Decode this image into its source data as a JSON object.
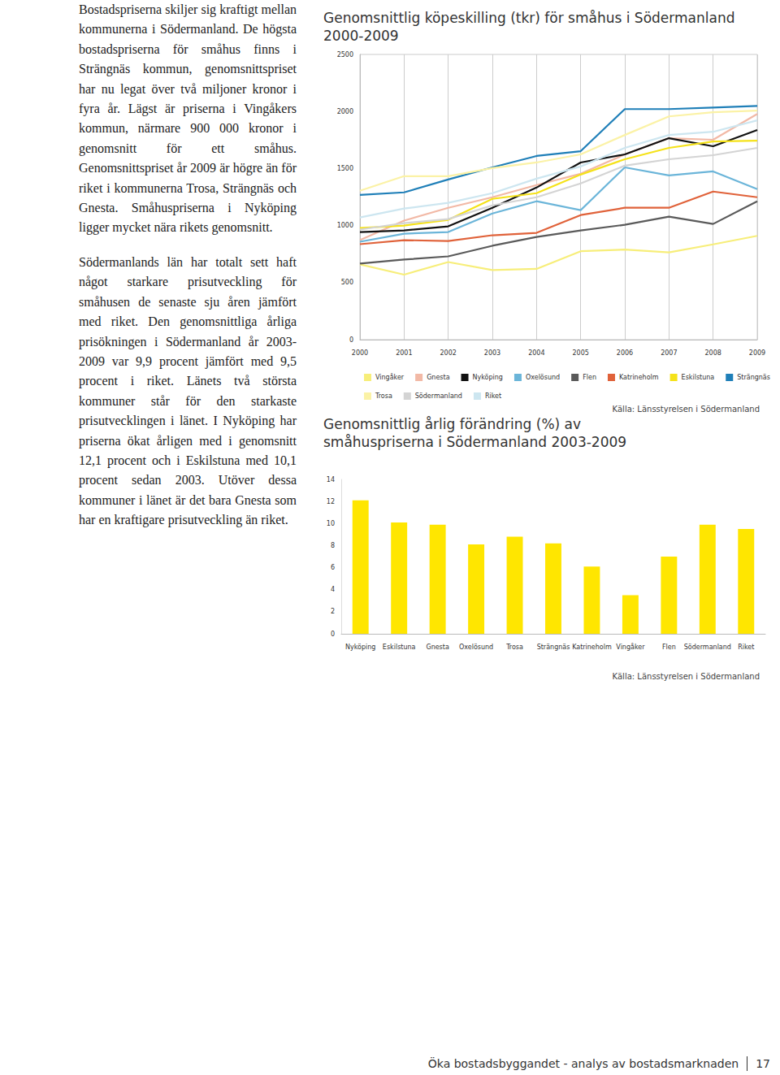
{
  "text": {
    "paragraphs": [
      "Bostadspriserna skiljer sig kraftigt mellan kommunerna i Södermanland. De högsta bostadspriserna för småhus finns i Strängnäs kommun, genomsnittspriset har nu legat över två miljoner kronor i fyra år. Lägst är priserna i Vingåkers kommun, närmare 900 000 kronor i genomsnitt för ett småhus. Genomsnittspriset år 2009 är högre än för riket i kommunerna Trosa, Strängnäs och Gnesta. Småhuspriserna i Nyköping ligger mycket nära rikets genomsnitt.",
      "Södermanlands län har totalt sett haft något starkare prisutveckling för småhusen de senaste sju åren jämfört med riket. Den genomsnittliga årliga prisökningen i Södermanland år 2003-2009 var 9,9 procent jämfört med 9,5 procent i riket. Länets två största kommuner står för den starkaste prisutvecklingen i länet. I Nyköping har priserna ökat årligen med i genomsnitt 12,1 procent och i Eskilstuna med 10,1 procent sedan 2003. Utöver dessa kommuner i länet är det bara Gnesta som har en kraftigare prisutveckling än riket."
    ]
  },
  "chart_data": [
    {
      "type": "line",
      "title": "Genomsnittlig köpeskilling (tkr) för småhus i Södermanland 2000-2009",
      "source": "Källa: Länsstyrelsen i Södermanland",
      "categories": [
        "2000",
        "2001",
        "2002",
        "2003",
        "2004",
        "2005",
        "2006",
        "2007",
        "2008",
        "2009"
      ],
      "series": [
        {
          "name": "Vingåker",
          "color": "#f7ee7a",
          "values": [
            660,
            570,
            680,
            610,
            620,
            775,
            790,
            765,
            835,
            910
          ]
        },
        {
          "name": "Gnesta",
          "color": "#f2b9a6",
          "values": [
            872,
            1043,
            1156,
            1248,
            1355,
            1454,
            1624,
            1766,
            1752,
            1978
          ]
        },
        {
          "name": "Nyköping",
          "color": "#111111",
          "values": [
            943,
            957,
            993,
            1156,
            1333,
            1553,
            1624,
            1766,
            1695,
            1837
          ]
        },
        {
          "name": "Oxelösund",
          "color": "#6bb5d9",
          "values": [
            858,
            929,
            943,
            1106,
            1213,
            1135,
            1510,
            1440,
            1475,
            1319
          ]
        },
        {
          "name": "Flen",
          "color": "#5a5a5a",
          "values": [
            667,
            702,
            730,
            823,
            900,
            957,
            1007,
            1078,
            1014,
            1213
          ]
        },
        {
          "name": "Katrineholm",
          "color": "#e0623a",
          "values": [
            837,
            872,
            865,
            915,
            936,
            1092,
            1156,
            1156,
            1298,
            1248
          ]
        },
        {
          "name": "Eskilstuna",
          "color": "#f5e21a",
          "values": [
            979,
            1000,
            1050,
            1234,
            1284,
            1447,
            1581,
            1681,
            1737,
            1744
          ]
        },
        {
          "name": "Strängnäs",
          "color": "#1f7fb8",
          "values": [
            1269,
            1291,
            1404,
            1510,
            1610,
            1652,
            2021,
            2021,
            2035,
            2049
          ]
        },
        {
          "name": "Trosa",
          "color": "#fbf2a6",
          "values": [
            1305,
            1433,
            1433,
            1504,
            1553,
            1624,
            1794,
            1957,
            1993,
            2007
          ]
        },
        {
          "name": "Södermanland",
          "color": "#d4d4d4",
          "values": [
            965,
            1021,
            1057,
            1177,
            1248,
            1369,
            1525,
            1581,
            1617,
            1681
          ]
        },
        {
          "name": "Riket",
          "color": "#cde6f0",
          "values": [
            1071,
            1149,
            1199,
            1284,
            1411,
            1518,
            1681,
            1794,
            1822,
            1922
          ]
        }
      ],
      "ylim": [
        0,
        2500
      ],
      "yticks": [
        0,
        500,
        1000,
        1500,
        2000,
        2500
      ],
      "grid": true,
      "legend": "bottom"
    },
    {
      "type": "bar",
      "title": "Genomsnittlig årlig förändring (%) av småhuspriserna i Södermanland 2003-2009",
      "source": "Källa: Länsstyrelsen i Södermanland",
      "categories": [
        "Nyköping",
        "Eskilstuna",
        "Gnesta",
        "Oxelösund",
        "Trosa",
        "Strängnäs",
        "Katrineholm",
        "Vingåker",
        "Flen",
        "Södermanland",
        "Riket"
      ],
      "values": [
        12.1,
        10.1,
        9.9,
        8.1,
        8.8,
        8.2,
        6.1,
        3.5,
        7.0,
        9.9,
        9.5
      ],
      "color": "#ffe600",
      "ylim": [
        0,
        14
      ],
      "yticks": [
        0,
        2,
        4,
        6,
        8,
        10,
        12,
        14
      ],
      "grid": false
    }
  ],
  "footer": {
    "title": "Öka bostadsbyggandet - analys av bostadsmarknaden",
    "page": "17"
  }
}
